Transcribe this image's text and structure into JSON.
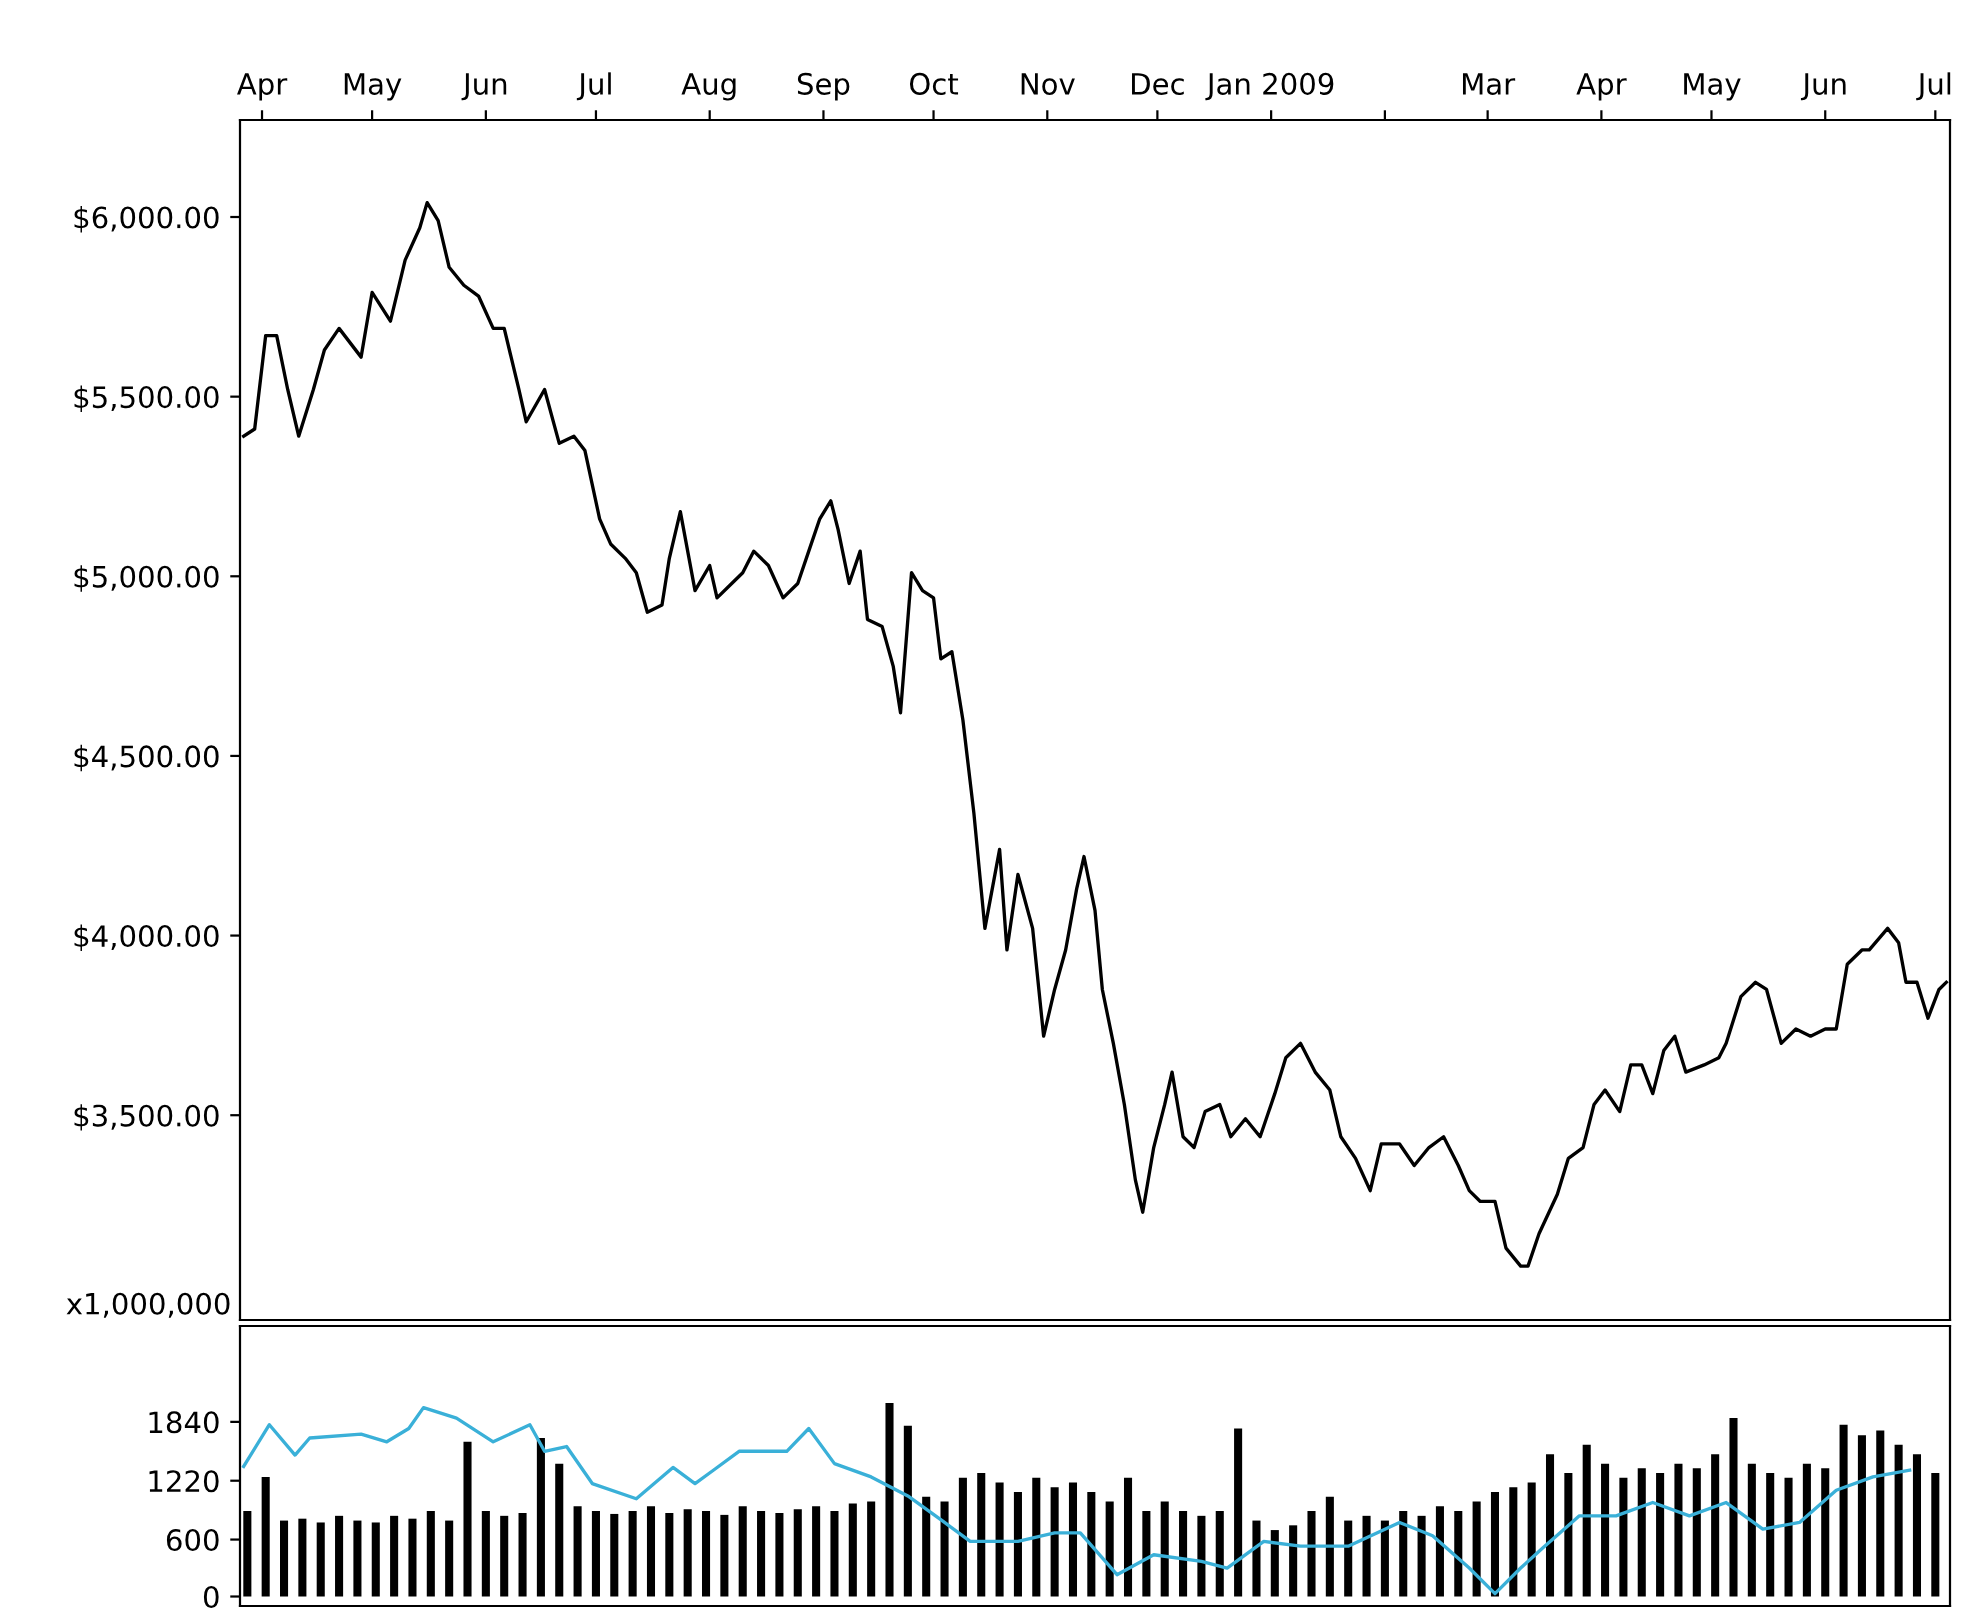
{
  "chart_data": [
    {
      "type": "line",
      "xlim": [
        "2008-03-26",
        "2009-07-05"
      ],
      "xticks": [
        {
          "value": "2008-04-01",
          "label": "Apr"
        },
        {
          "value": "2008-05-01",
          "label": "May"
        },
        {
          "value": "2008-06-01",
          "label": "Jun"
        },
        {
          "value": "2008-07-01",
          "label": "Jul"
        },
        {
          "value": "2008-08-01",
          "label": "Aug"
        },
        {
          "value": "2008-09-01",
          "label": "Sep"
        },
        {
          "value": "2008-10-01",
          "label": "Oct"
        },
        {
          "value": "2008-11-01",
          "label": "Nov"
        },
        {
          "value": "2008-12-01",
          "label": "Dec"
        },
        {
          "value": "2009-01-01",
          "label": "Jan 2009"
        },
        {
          "value": "2009-02-01",
          "label": null
        },
        {
          "value": "2009-03-01",
          "label": "Mar"
        },
        {
          "value": "2009-04-01",
          "label": "Apr"
        },
        {
          "value": "2009-05-01",
          "label": "May"
        },
        {
          "value": "2009-06-01",
          "label": "Jun"
        },
        {
          "value": "2009-07-01",
          "label": "Jul"
        }
      ],
      "ylim": [
        2930,
        6270
      ],
      "yticks": [
        {
          "value": 3500,
          "label": "$3,500.00"
        },
        {
          "value": 4000,
          "label": "$4,000.00"
        },
        {
          "value": 4500,
          "label": "$4,500.00"
        },
        {
          "value": 5000,
          "label": "$5,000.00"
        },
        {
          "value": 5500,
          "label": "$5,500.00"
        },
        {
          "value": 6000,
          "label": "$6,000.00"
        }
      ],
      "grid": false,
      "marker": "none",
      "line_style": "solid",
      "series": [
        {
          "color": "#000000",
          "x": [
            "2008-03-27",
            "2008-03-30",
            "2008-04-02",
            "2008-04-05",
            "2008-04-08",
            "2008-04-11",
            "2008-04-15",
            "2008-04-18",
            "2008-04-22",
            "2008-04-28",
            "2008-05-01",
            "2008-05-06",
            "2008-05-10",
            "2008-05-14",
            "2008-05-16",
            "2008-05-19",
            "2008-05-22",
            "2008-05-26",
            "2008-05-30",
            "2008-06-03",
            "2008-06-06",
            "2008-06-10",
            "2008-06-12",
            "2008-06-17",
            "2008-06-21",
            "2008-06-25",
            "2008-06-28",
            "2008-07-02",
            "2008-07-05",
            "2008-07-09",
            "2008-07-12",
            "2008-07-15",
            "2008-07-19",
            "2008-07-21",
            "2008-07-24",
            "2008-07-28",
            "2008-08-01",
            "2008-08-03",
            "2008-08-07",
            "2008-08-10",
            "2008-08-13",
            "2008-08-17",
            "2008-08-21",
            "2008-08-25",
            "2008-08-28",
            "2008-08-31",
            "2008-09-03",
            "2008-09-05",
            "2008-09-08",
            "2008-09-11",
            "2008-09-13",
            "2008-09-17",
            "2008-09-20",
            "2008-09-22",
            "2008-09-25",
            "2008-09-28",
            "2008-10-01",
            "2008-10-03",
            "2008-10-06",
            "2008-10-09",
            "2008-10-12",
            "2008-10-15",
            "2008-10-19",
            "2008-10-21",
            "2008-10-24",
            "2008-10-28",
            "2008-10-31",
            "2008-11-03",
            "2008-11-06",
            "2008-11-09",
            "2008-11-11",
            "2008-11-14",
            "2008-11-16",
            "2008-11-19",
            "2008-11-22",
            "2008-11-25",
            "2008-11-27",
            "2008-11-30",
            "2008-12-03",
            "2008-12-05",
            "2008-12-08",
            "2008-12-11",
            "2008-12-14",
            "2008-12-18",
            "2008-12-21",
            "2008-12-25",
            "2008-12-29",
            "2009-01-02",
            "2009-01-05",
            "2009-01-09",
            "2009-01-13",
            "2009-01-17",
            "2009-01-20",
            "2009-01-24",
            "2009-01-28",
            "2009-01-31",
            "2009-02-05",
            "2009-02-09",
            "2009-02-13",
            "2009-02-17",
            "2009-02-21",
            "2009-02-24",
            "2009-02-27",
            "2009-03-03",
            "2009-03-06",
            "2009-03-10",
            "2009-03-12",
            "2009-03-15",
            "2009-03-20",
            "2009-03-23",
            "2009-03-27",
            "2009-03-30",
            "2009-04-02",
            "2009-04-06",
            "2009-04-09",
            "2009-04-12",
            "2009-04-15",
            "2009-04-18",
            "2009-04-21",
            "2009-04-24",
            "2009-04-29",
            "2009-05-03",
            "2009-05-05",
            "2009-05-09",
            "2009-05-13",
            "2009-05-16",
            "2009-05-20",
            "2009-05-24",
            "2009-05-28",
            "2009-06-01",
            "2009-06-04",
            "2009-06-07",
            "2009-06-11",
            "2009-06-13",
            "2009-06-18",
            "2009-06-21",
            "2009-06-23",
            "2009-06-26",
            "2009-06-29",
            "2009-07-02",
            "2009-07-04"
          ],
          "values": [
            5390,
            5410,
            5670,
            5670,
            5520,
            5390,
            5520,
            5630,
            5690,
            5610,
            5790,
            5710,
            5880,
            5970,
            6040,
            5990,
            5860,
            5810,
            5780,
            5690,
            5690,
            5520,
            5430,
            5520,
            5370,
            5390,
            5350,
            5160,
            5090,
            5050,
            5010,
            4900,
            4920,
            5050,
            5180,
            4960,
            5030,
            4940,
            4980,
            5010,
            5070,
            5030,
            4940,
            4980,
            5070,
            5160,
            5210,
            5130,
            4980,
            5070,
            4880,
            4860,
            4750,
            4620,
            5010,
            4960,
            4940,
            4770,
            4790,
            4600,
            4340,
            4020,
            4240,
            3960,
            4170,
            4020,
            3720,
            3850,
            3960,
            4130,
            4220,
            4070,
            3850,
            3700,
            3530,
            3320,
            3230,
            3410,
            3530,
            3620,
            3440,
            3410,
            3510,
            3530,
            3440,
            3490,
            3440,
            3560,
            3660,
            3700,
            3620,
            3570,
            3440,
            3380,
            3290,
            3420,
            3420,
            3360,
            3410,
            3440,
            3360,
            3290,
            3260,
            3260,
            3130,
            3080,
            3080,
            3170,
            3280,
            3380,
            3410,
            3530,
            3570,
            3510,
            3640,
            3640,
            3560,
            3680,
            3720,
            3620,
            3640,
            3660,
            3700,
            3830,
            3870,
            3850,
            3700,
            3740,
            3720,
            3740,
            3740,
            3920,
            3960,
            3960,
            4020,
            3980,
            3870,
            3870,
            3770,
            3850,
            3870
          ]
        }
      ]
    },
    {
      "type": "bar",
      "ylabel": "x1,000,000",
      "xlim": [
        "2008-03-26",
        "2009-07-05"
      ],
      "tick_labels": "y",
      "ylim": [
        -100,
        2850
      ],
      "yticks": [
        0,
        600,
        1220,
        1840
      ],
      "grid": false,
      "series": [
        {
          "type": "bar",
          "color": "#000000",
          "x": [
            "2008-03-28",
            "2008-04-02",
            "2008-04-07",
            "2008-04-12",
            "2008-04-17",
            "2008-04-22",
            "2008-04-27",
            "2008-05-02",
            "2008-05-07",
            "2008-05-12",
            "2008-05-17",
            "2008-05-22",
            "2008-05-27",
            "2008-06-01",
            "2008-06-06",
            "2008-06-11",
            "2008-06-16",
            "2008-06-21",
            "2008-06-26",
            "2008-07-01",
            "2008-07-06",
            "2008-07-11",
            "2008-07-16",
            "2008-07-21",
            "2008-07-26",
            "2008-07-31",
            "2008-08-05",
            "2008-08-10",
            "2008-08-15",
            "2008-08-20",
            "2008-08-25",
            "2008-08-30",
            "2008-09-04",
            "2008-09-09",
            "2008-09-14",
            "2008-09-19",
            "2008-09-24",
            "2008-09-29",
            "2008-10-04",
            "2008-10-09",
            "2008-10-14",
            "2008-10-19",
            "2008-10-24",
            "2008-10-29",
            "2008-11-03",
            "2008-11-08",
            "2008-11-13",
            "2008-11-18",
            "2008-11-23",
            "2008-11-28",
            "2008-12-03",
            "2008-12-08",
            "2008-12-13",
            "2008-12-18",
            "2008-12-23",
            "2008-12-28",
            "2009-01-02",
            "2009-01-07",
            "2009-01-12",
            "2009-01-17",
            "2009-01-22",
            "2009-01-27",
            "2009-02-01",
            "2009-02-06",
            "2009-02-11",
            "2009-02-16",
            "2009-02-21",
            "2009-02-26",
            "2009-03-03",
            "2009-03-08",
            "2009-03-13",
            "2009-03-18",
            "2009-03-23",
            "2009-03-28",
            "2009-04-02",
            "2009-04-07",
            "2009-04-12",
            "2009-04-17",
            "2009-04-22",
            "2009-04-27",
            "2009-05-02",
            "2009-05-07",
            "2009-05-12",
            "2009-05-17",
            "2009-05-22",
            "2009-05-27",
            "2009-06-01",
            "2009-06-06",
            "2009-06-11",
            "2009-06-16",
            "2009-06-21",
            "2009-06-26",
            "2009-07-01"
          ],
          "values": [
            900,
            1260,
            800,
            820,
            780,
            850,
            800,
            780,
            850,
            820,
            900,
            800,
            1630,
            900,
            850,
            880,
            1670,
            1400,
            950,
            900,
            870,
            900,
            950,
            880,
            920,
            900,
            860,
            950,
            900,
            880,
            920,
            950,
            900,
            980,
            1000,
            2040,
            1800,
            1050,
            1000,
            1250,
            1300,
            1200,
            1100,
            1250,
            1150,
            1200,
            1100,
            1000,
            1250,
            900,
            1000,
            900,
            850,
            900,
            1770,
            800,
            700,
            750,
            900,
            1050,
            800,
            850,
            800,
            900,
            850,
            950,
            900,
            1000,
            1100,
            1150,
            1200,
            1500,
            1300,
            1600,
            1400,
            1250,
            1350,
            1300,
            1400,
            1350,
            1500,
            1880,
            1400,
            1300,
            1250,
            1400,
            1350,
            1810,
            1700,
            1750,
            1600,
            1500,
            1300
          ]
        },
        {
          "type": "line",
          "color": "#3ab0d8",
          "x": [
            "2008-03-27",
            "2008-04-03",
            "2008-04-10",
            "2008-04-14",
            "2008-04-28",
            "2008-05-05",
            "2008-05-11",
            "2008-05-15",
            "2008-05-24",
            "2008-06-03",
            "2008-06-13",
            "2008-06-17",
            "2008-06-23",
            "2008-06-30",
            "2008-07-12",
            "2008-07-22",
            "2008-07-28",
            "2008-08-02",
            "2008-08-09",
            "2008-08-22",
            "2008-08-28",
            "2008-09-04",
            "2008-09-14",
            "2008-09-24",
            "2008-10-04",
            "2008-10-11",
            "2008-10-24",
            "2008-11-03",
            "2008-11-10",
            "2008-11-20",
            "2008-11-30",
            "2008-12-13",
            "2008-12-20",
            "2008-12-30",
            "2009-01-09",
            "2009-01-22",
            "2009-02-05",
            "2009-02-14",
            "2009-02-24",
            "2009-03-03",
            "2009-03-10",
            "2009-03-16",
            "2009-03-26",
            "2009-04-05",
            "2009-04-15",
            "2009-04-25",
            "2009-05-05",
            "2009-05-15",
            "2009-05-25",
            "2009-06-04",
            "2009-06-14",
            "2009-06-24"
          ],
          "values": [
            1370,
            1810,
            1490,
            1670,
            1710,
            1630,
            1770,
            1990,
            1880,
            1630,
            1810,
            1530,
            1580,
            1190,
            1030,
            1360,
            1190,
            1330,
            1530,
            1530,
            1770,
            1400,
            1260,
            1060,
            780,
            580,
            580,
            670,
            670,
            230,
            440,
            370,
            300,
            580,
            530,
            530,
            780,
            640,
            300,
            30,
            300,
            510,
            850,
            850,
            990,
            850,
            990,
            710,
            780,
            1120,
            1260,
            1330
          ]
        }
      ]
    }
  ]
}
